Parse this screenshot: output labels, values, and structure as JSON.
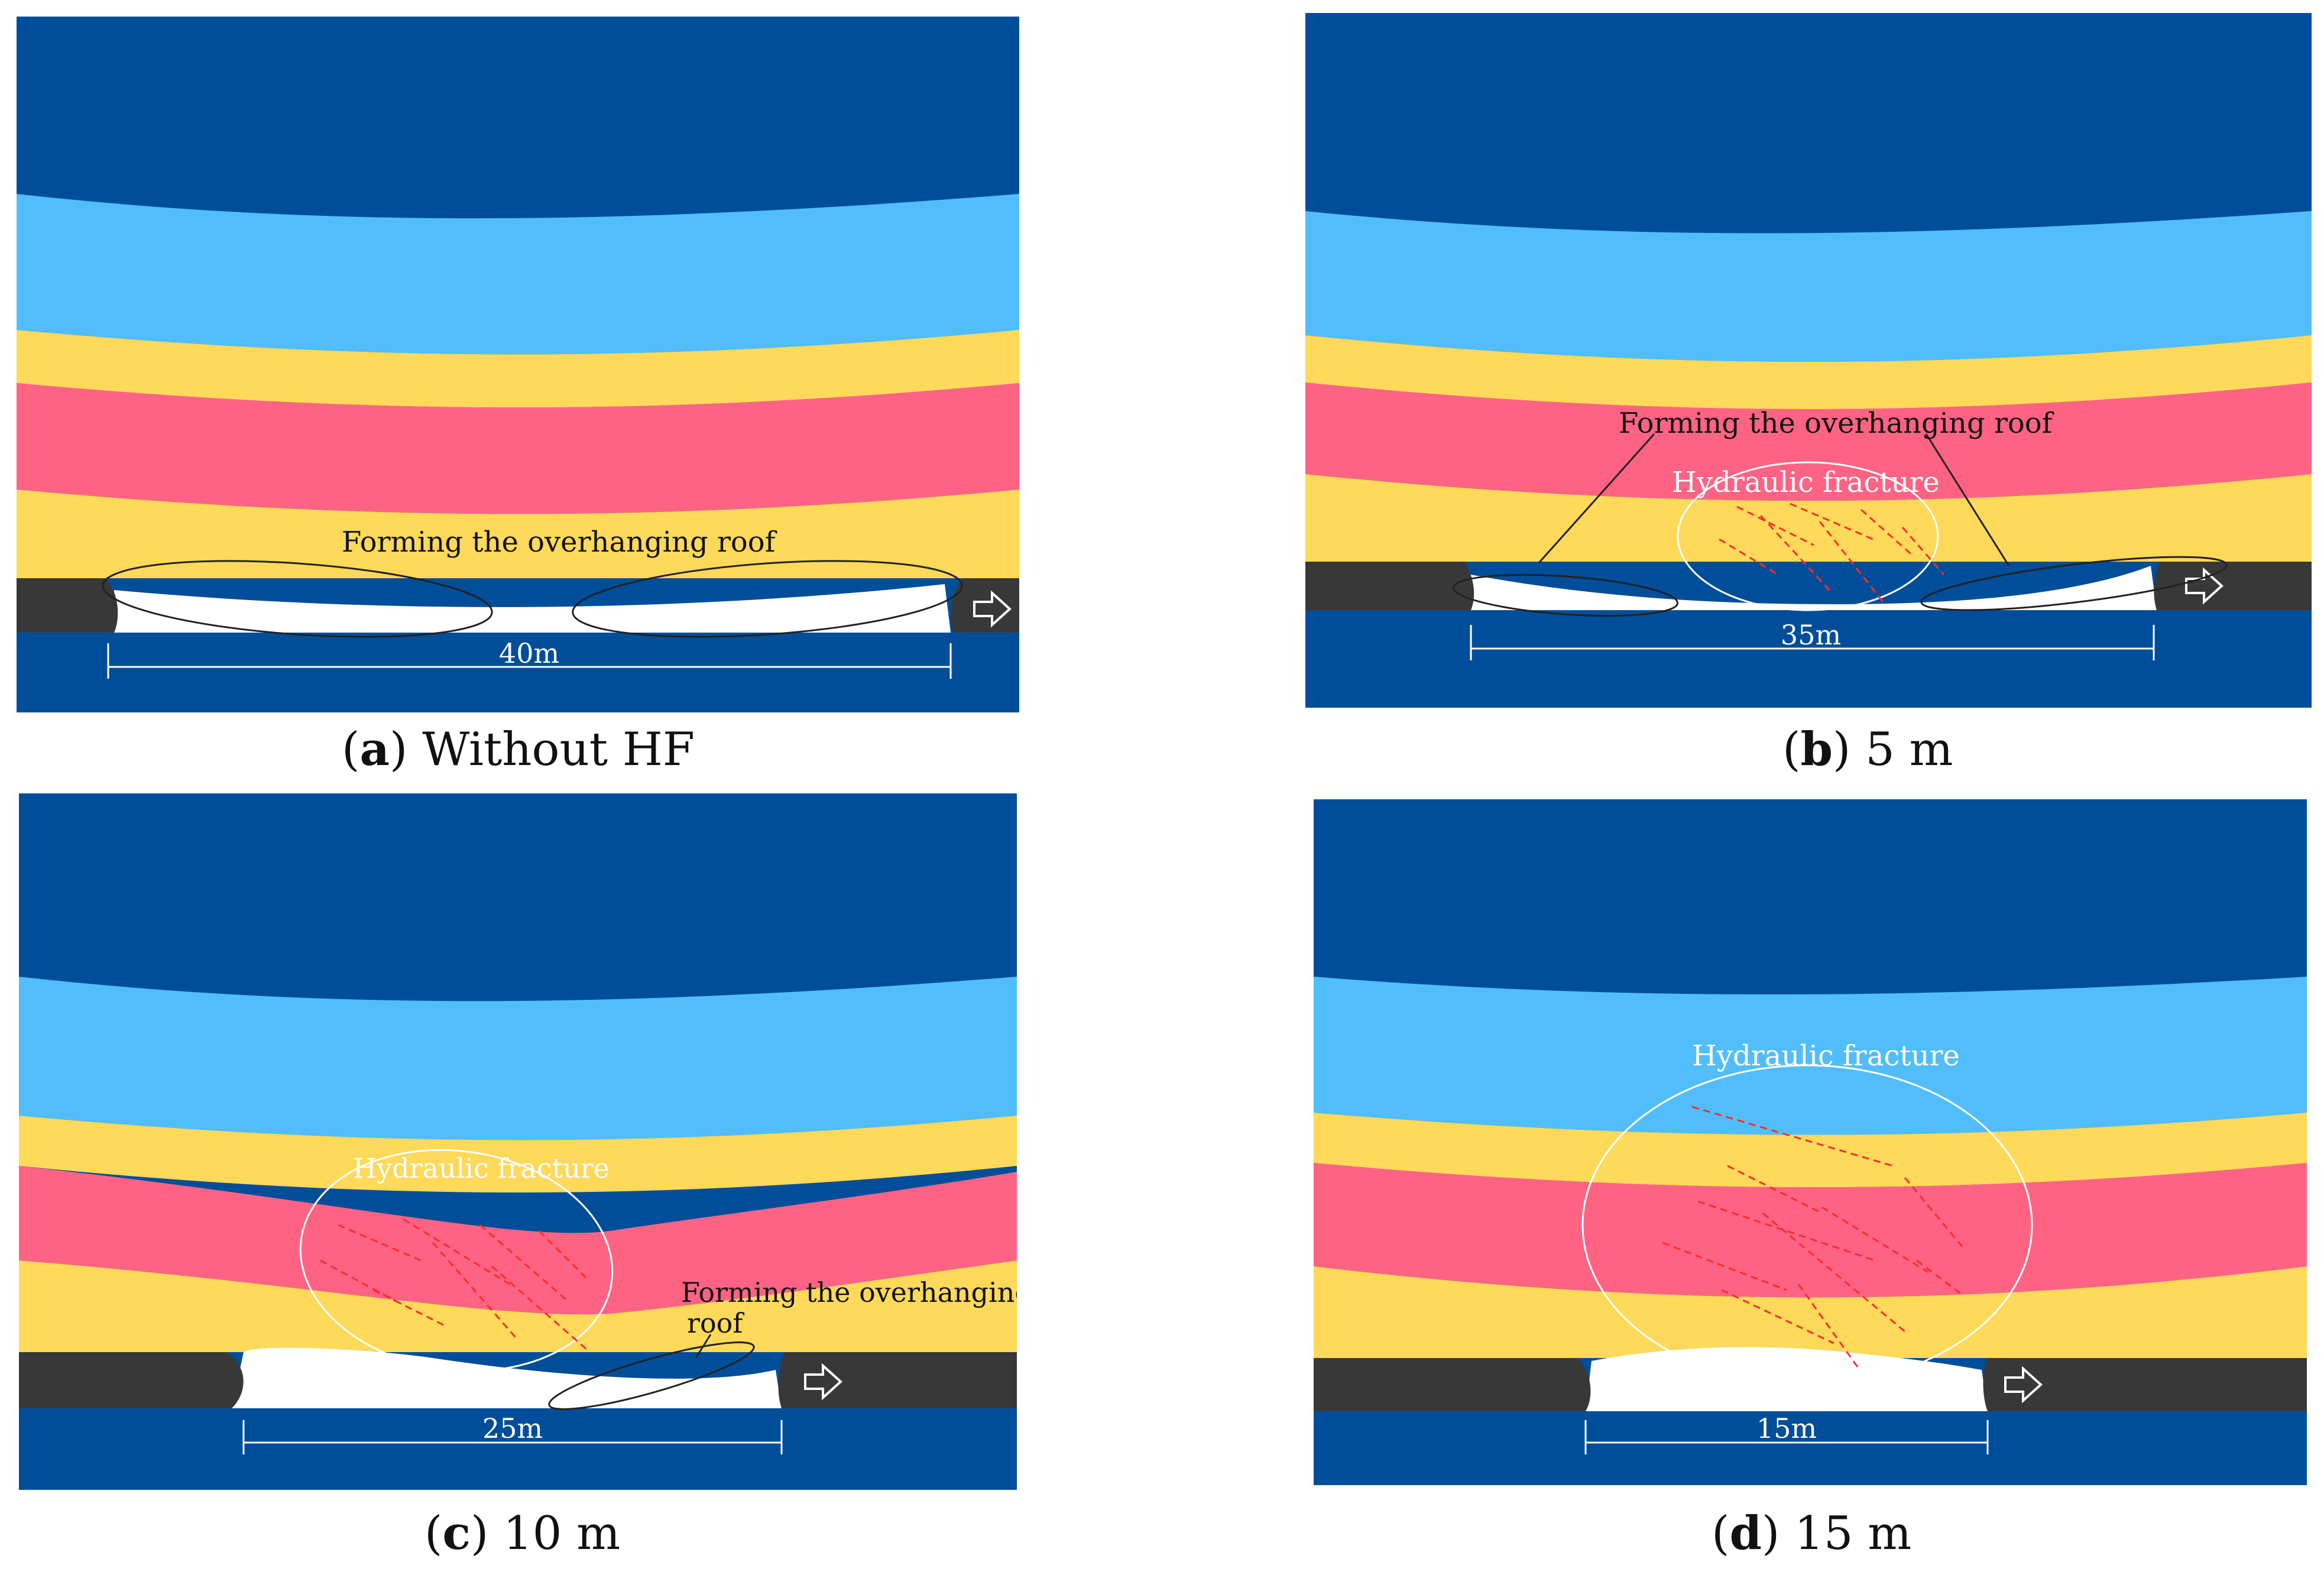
{
  "colors": {
    "top_strata": "#004e9a",
    "light_blue": "#52bdfb",
    "yellow": "#fed95a",
    "pink": "#ff6384",
    "coal": "#383838",
    "floor": "#004e9a",
    "fracture_red": "#ff2b2b"
  },
  "panels": [
    {
      "label": "a",
      "caption": "Without HF",
      "span_label": "40m",
      "annotations": [
        "Forming the overhanging roof"
      ]
    },
    {
      "label": "b",
      "caption": "5 m",
      "span_label": "35m",
      "annotations": [
        "Forming the overhanging roof",
        "Hydraulic fracture"
      ]
    },
    {
      "label": "c",
      "caption": "10 m",
      "span_label": "25m",
      "annotations": [
        "Hydraulic fracture",
        "Forming the overhanging",
        "roof"
      ]
    },
    {
      "label": "d",
      "caption": "15 m",
      "span_label": "15m",
      "annotations": [
        "Hydraulic fracture"
      ]
    }
  ]
}
